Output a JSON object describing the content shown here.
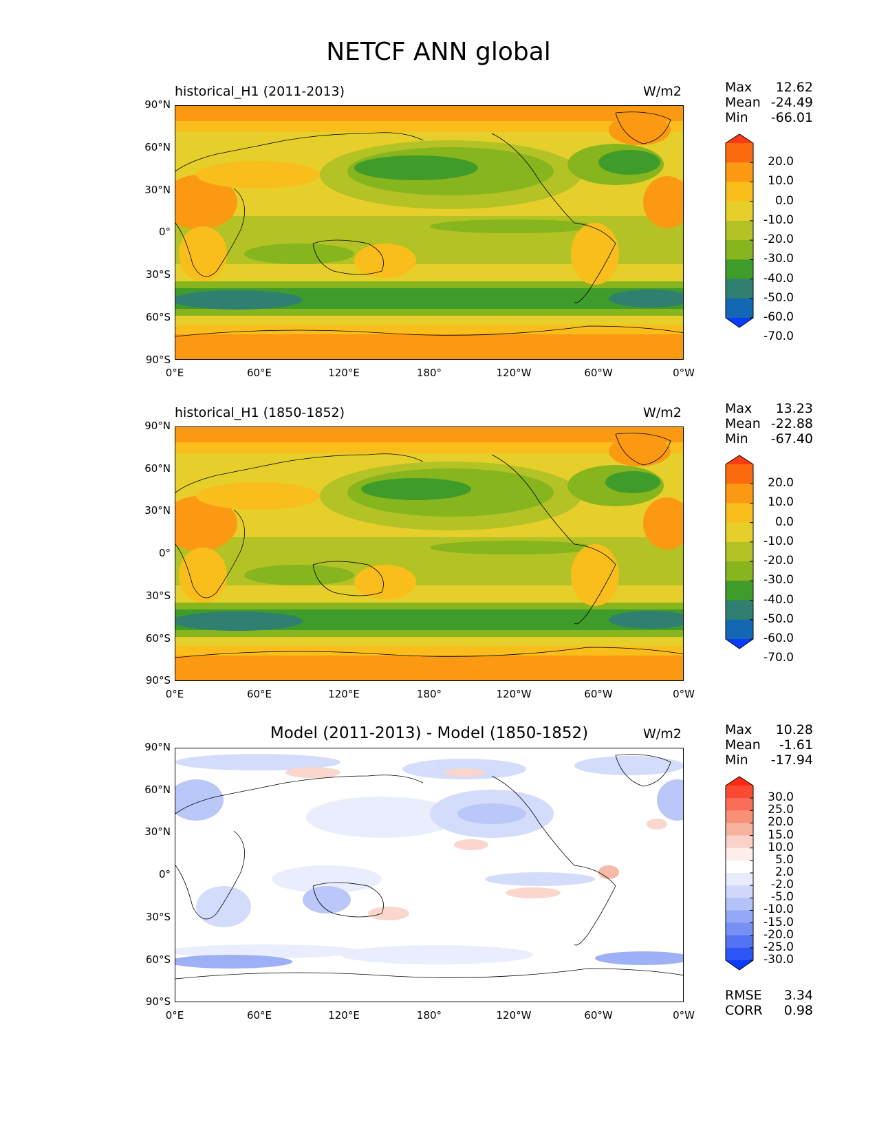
{
  "figure": {
    "title": "NETCF ANN global"
  },
  "axes": {
    "y_ticks": [
      "90°N",
      "60°N",
      "30°N",
      "0°",
      "30°S",
      "60°S",
      "90°S"
    ],
    "x_ticks": [
      "0°E",
      "60°E",
      "120°E",
      "180°",
      "120°W",
      "60°W",
      "0°W"
    ]
  },
  "panels": [
    {
      "title": "historical_H1 (2011-2013)",
      "units": "W/m2",
      "stats": {
        "max_label": "Max",
        "max": "12.62",
        "mean_label": "Mean",
        "mean": "-24.49",
        "min_label": "Min",
        "min": "-66.01"
      },
      "colorbar_labels": [
        "20.0",
        "10.0",
        "0.0",
        "-10.0",
        "-20.0",
        "-30.0",
        "-40.0",
        "-50.0",
        "-60.0",
        "-70.0"
      ],
      "colorbar_colors": [
        "#ff3b12",
        "#fb6a0e",
        "#fb9a12",
        "#f9be1c",
        "#e6cf2b",
        "#b3c224",
        "#86b51d",
        "#3f9b2a",
        "#2f8070",
        "#1468b3",
        "#0a3cff"
      ]
    },
    {
      "title": "historical_H1 (1850-1852)",
      "units": "W/m2",
      "stats": {
        "max_label": "Max",
        "max": "13.23",
        "mean_label": "Mean",
        "mean": "-22.88",
        "min_label": "Min",
        "min": "-67.40"
      },
      "colorbar_labels": [
        "20.0",
        "10.0",
        "0.0",
        "-10.0",
        "-20.0",
        "-30.0",
        "-40.0",
        "-50.0",
        "-60.0",
        "-70.0"
      ],
      "colorbar_colors": [
        "#ff3b12",
        "#fb6a0e",
        "#fb9a12",
        "#f9be1c",
        "#e6cf2b",
        "#b3c224",
        "#86b51d",
        "#3f9b2a",
        "#2f8070",
        "#1468b3",
        "#0a3cff"
      ]
    },
    {
      "title": "Model (2011-2013) - Model (1850-1852)",
      "units": "W/m2",
      "stats": {
        "max_label": "Max",
        "max": "10.28",
        "mean_label": "Mean",
        "mean": "-1.61",
        "min_label": "Min",
        "min": "-17.94"
      },
      "colorbar_labels": [
        "30.0",
        "25.0",
        "20.0",
        "15.0",
        "10.0",
        "5.0",
        "2.0",
        "-2.0",
        "-5.0",
        "-10.0",
        "-15.0",
        "-20.0",
        "-25.0",
        "-30.0"
      ],
      "colorbar_colors": [
        "#ff2a10",
        "#fb4a34",
        "#f86e56",
        "#f89078",
        "#f8b2a0",
        "#fad2c8",
        "#fdeee9",
        "#ffffff",
        "#e8ecfd",
        "#d0d9fb",
        "#b3c2f8",
        "#93a8f5",
        "#7690f3",
        "#5274f3",
        "#2e55f6",
        "#0a3cff"
      ],
      "rmse_label": "RMSE",
      "rmse": "3.34",
      "corr_label": "CORR",
      "corr": "0.98"
    }
  ],
  "chart_data": [
    {
      "type": "heatmap",
      "title": "historical_H1 (2011-2013)",
      "units": "W/m2",
      "projection": "lon 0°E to 0°W, lat 90°S to 90°N",
      "max": 12.62,
      "mean": -24.49,
      "min": -66.01,
      "levels": [
        20,
        10,
        0,
        -10,
        -20,
        -30,
        -40,
        -50,
        -60,
        -70
      ]
    },
    {
      "type": "heatmap",
      "title": "historical_H1 (1850-1852)",
      "units": "W/m2",
      "max": 13.23,
      "mean": -22.88,
      "min": -67.4,
      "levels": [
        20,
        10,
        0,
        -10,
        -20,
        -30,
        -40,
        -50,
        -60,
        -70
      ]
    },
    {
      "type": "heatmap",
      "title": "Model (2011-2013) - Model (1850-1852)",
      "units": "W/m2",
      "max": 10.28,
      "mean": -1.61,
      "min": -17.94,
      "rmse": 3.34,
      "corr": 0.98,
      "levels": [
        30,
        25,
        20,
        15,
        10,
        5,
        2,
        -2,
        -5,
        -10,
        -15,
        -20,
        -25,
        -30
      ]
    }
  ]
}
